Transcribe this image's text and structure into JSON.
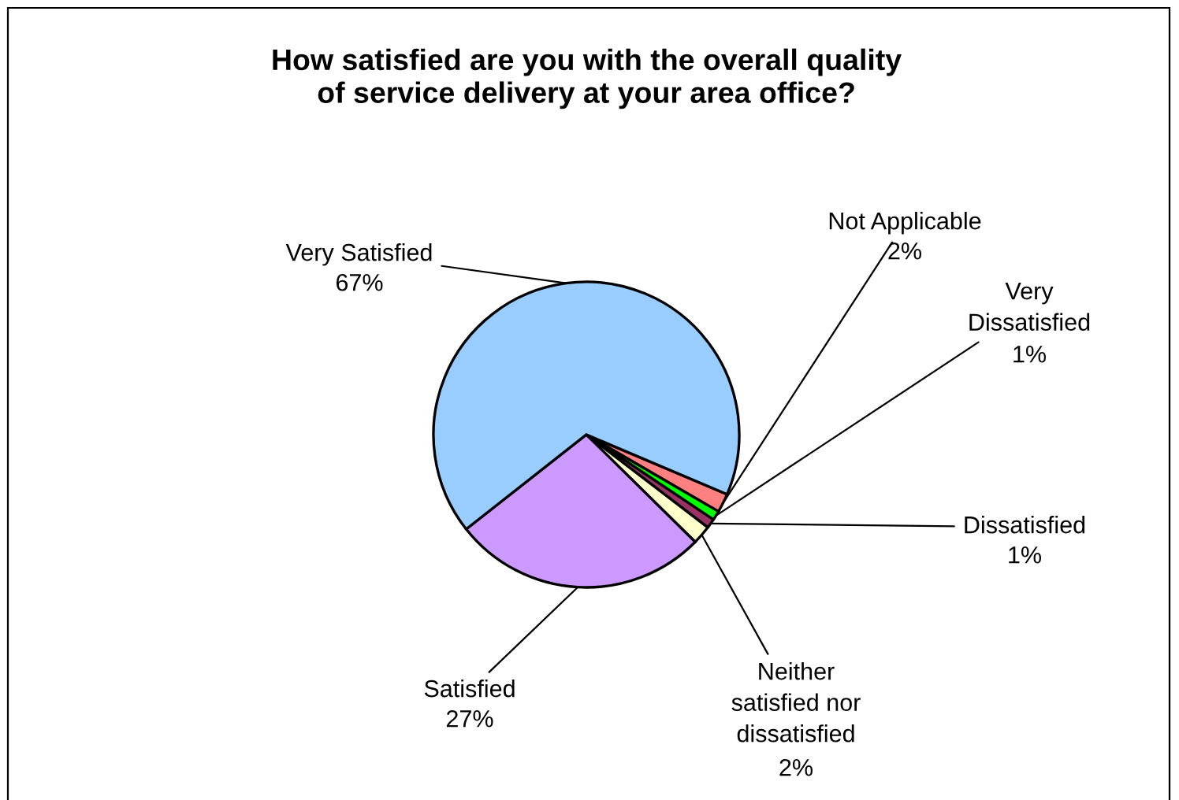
{
  "chart_data": {
    "type": "pie",
    "title": "How satisfied are you with the overall quality\nof service delivery at your area office?",
    "categories": [
      "Not Applicable",
      "Very Dissatisfied",
      "Dissatisfied",
      "Neither satisfied nor dissatisfied",
      "Satisfied",
      "Very Satisfied"
    ],
    "values": [
      2,
      1,
      1,
      2,
      27,
      67
    ],
    "colors": [
      "#ff8080",
      "#00ff00",
      "#993366",
      "#ffffcc",
      "#cc99ff",
      "#99ccff"
    ],
    "value_labels": [
      "2%",
      "1%",
      "1%",
      "2%",
      "27%",
      "67%"
    ],
    "legend": false
  }
}
